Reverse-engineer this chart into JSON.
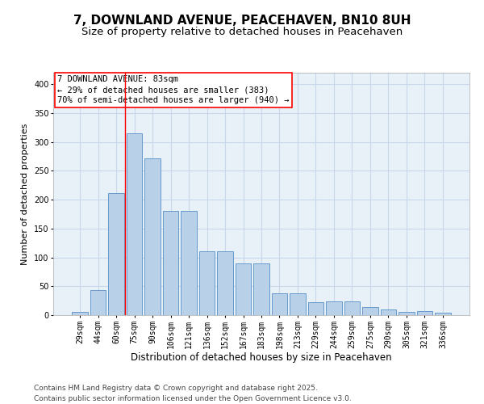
{
  "title": "7, DOWNLAND AVENUE, PEACEHAVEN, BN10 8UH",
  "subtitle": "Size of property relative to detached houses in Peacehaven",
  "xlabel": "Distribution of detached houses by size in Peacehaven",
  "ylabel": "Number of detached properties",
  "categories": [
    "29sqm",
    "44sqm",
    "60sqm",
    "75sqm",
    "90sqm",
    "106sqm",
    "121sqm",
    "136sqm",
    "152sqm",
    "167sqm",
    "183sqm",
    "198sqm",
    "213sqm",
    "229sqm",
    "244sqm",
    "259sqm",
    "275sqm",
    "290sqm",
    "305sqm",
    "321sqm",
    "336sqm"
  ],
  "values": [
    5,
    43,
    212,
    315,
    272,
    180,
    180,
    110,
    110,
    90,
    90,
    38,
    38,
    23,
    24,
    24,
    14,
    10,
    6,
    7,
    4
  ],
  "bar_color": "#b8d0e8",
  "bar_edge_color": "#6699cc",
  "bar_width": 0.85,
  "vline_x": 2.5,
  "vline_color": "red",
  "annotation_text": "7 DOWNLAND AVENUE: 83sqm\n← 29% of detached houses are smaller (383)\n70% of semi-detached houses are larger (940) →",
  "annotation_box_color": "white",
  "annotation_box_edge": "red",
  "ylim": [
    0,
    420
  ],
  "yticks": [
    0,
    50,
    100,
    150,
    200,
    250,
    300,
    350,
    400
  ],
  "grid_color": "#c8d8ea",
  "background_color": "#e8f0f8",
  "footer_line1": "Contains HM Land Registry data © Crown copyright and database right 2025.",
  "footer_line2": "Contains public sector information licensed under the Open Government Licence v3.0.",
  "title_fontsize": 11,
  "subtitle_fontsize": 9.5,
  "xlabel_fontsize": 8.5,
  "ylabel_fontsize": 8,
  "tick_fontsize": 7,
  "annotation_fontsize": 7.5,
  "footer_fontsize": 6.5
}
